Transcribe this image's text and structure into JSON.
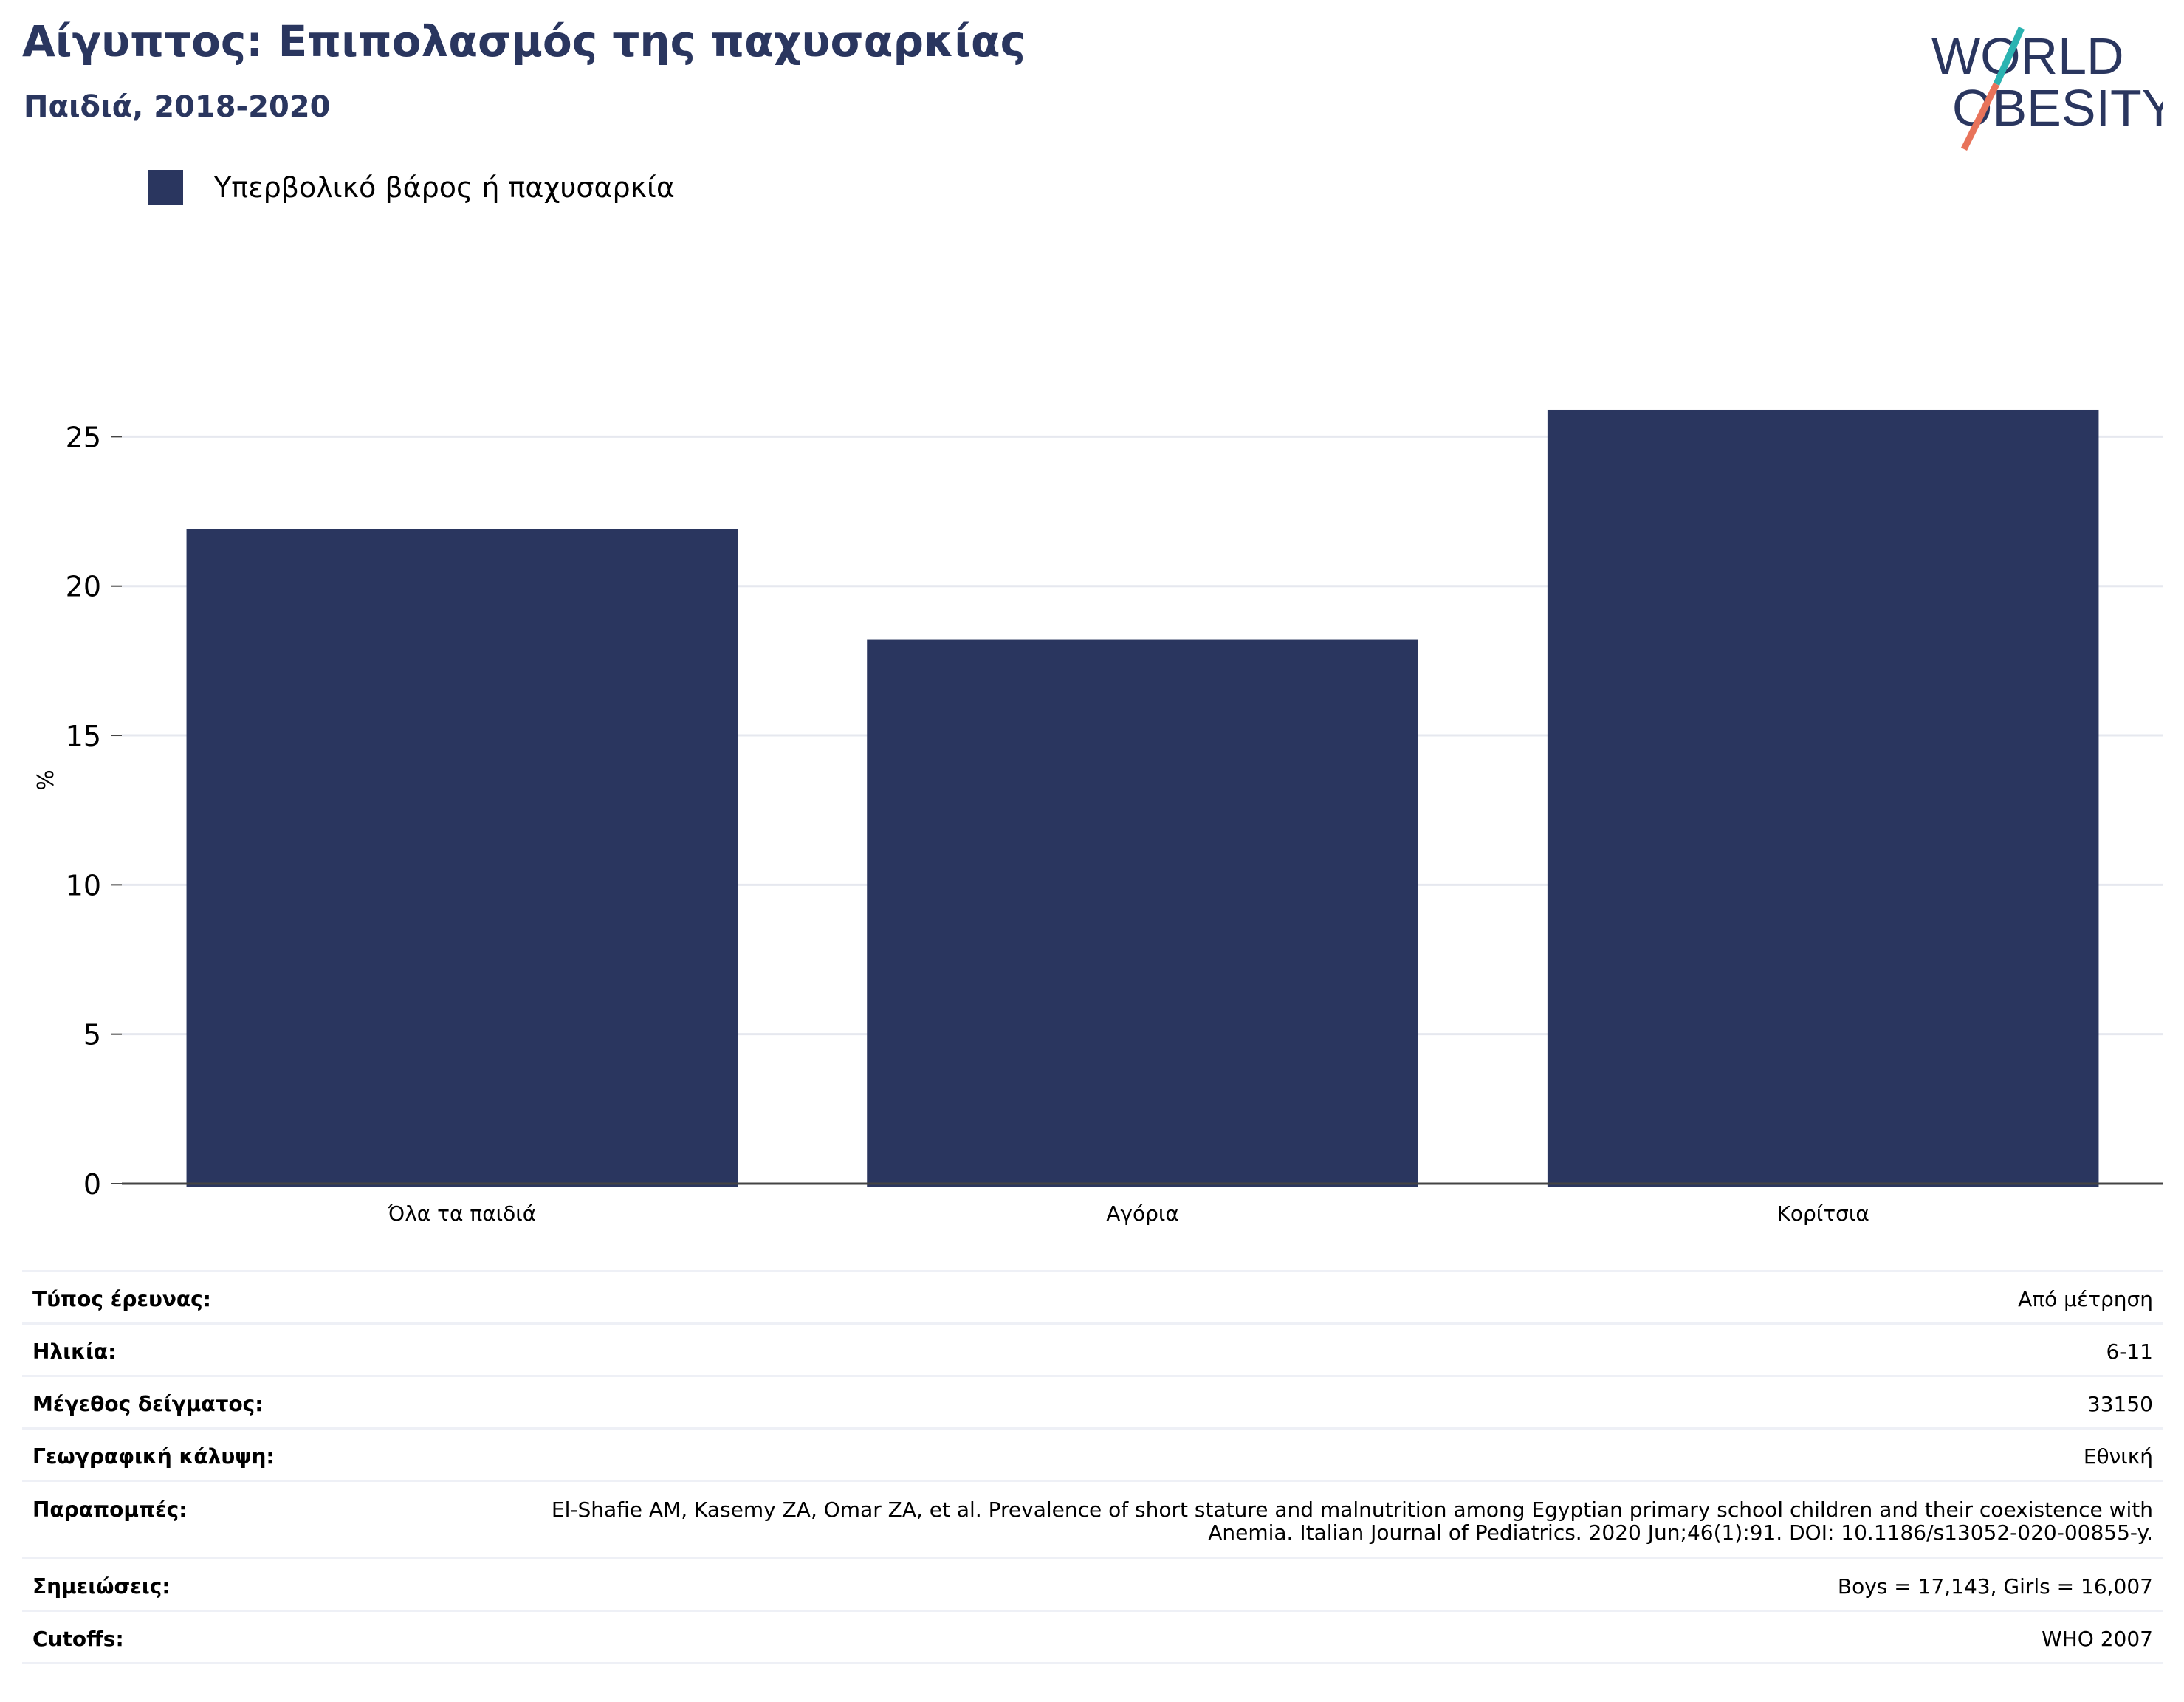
{
  "header": {
    "title": "Αίγυπτος: Επιπολασμός της παχυσαρκίας",
    "subtitle": "Παιδιά, 2018-2020"
  },
  "logo": {
    "line1": "WORLD",
    "line2": "OBESITY",
    "icon": "world-obesity-logo"
  },
  "colors": {
    "bar": "#2a365f",
    "title": "#2a365f",
    "logo_teal": "#2bb3b1",
    "logo_coral": "#e8735a",
    "grid": "#e6e8ef"
  },
  "chart_data": {
    "type": "bar",
    "categories": [
      "Όλα τα παιδιά",
      "Αγόρια",
      "Κορίτσια"
    ],
    "series": [
      {
        "name": "Υπερβολικό βάρος ή παχυσαρκία",
        "values": [
          21.9,
          18.2,
          25.9
        ]
      }
    ],
    "ylabel": "%",
    "ylim": [
      0,
      28
    ],
    "yticks": [
      0,
      5,
      10,
      15,
      20,
      25
    ],
    "grid": true,
    "legend": "top-left"
  },
  "info": [
    {
      "label": "Τύπος έρευνας:",
      "value": "Από μέτρηση"
    },
    {
      "label": "Ηλικία:",
      "value": "6-11"
    },
    {
      "label": "Μέγεθος δείγματος:",
      "value": "33150"
    },
    {
      "label": "Γεωγραφική κάλυψη:",
      "value": "Εθνική"
    },
    {
      "label": "Παραπομπές:",
      "value": "El-Shafie AM, Kasemy ZA, Omar ZA, et al. Prevalence of short stature and malnutrition among Egyptian primary school children and their coexistence with Anemia. Italian Journal of Pediatrics. 2020 Jun;46(1):91. DOI: 10.1186/s13052-020-00855-y."
    },
    {
      "label": "Σημειώσεις:",
      "value": "Boys = 17,143, Girls = 16,007"
    },
    {
      "label": "Cutoffs:",
      "value": "WHO 2007"
    }
  ]
}
